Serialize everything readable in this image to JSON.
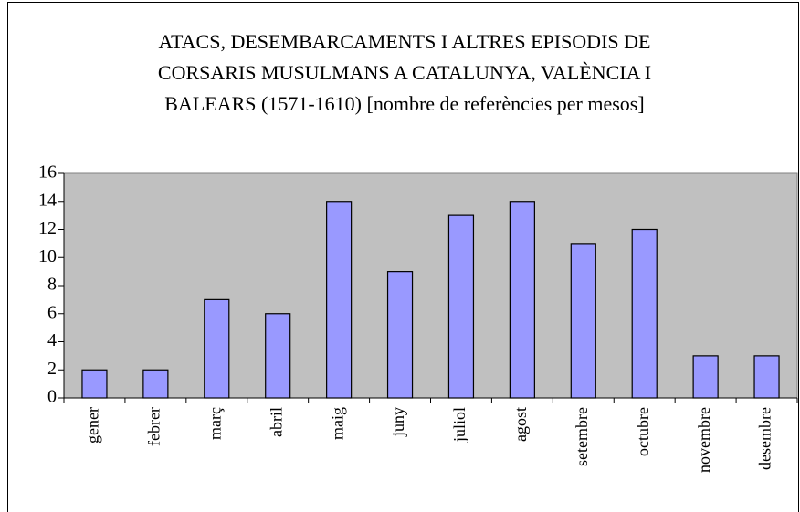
{
  "chart_data": {
    "type": "bar",
    "title": [
      "ATACS, DESEMBARCAMENTS I ALTRES EPISODIS DE",
      "CORSARIS MUSULMANS A CATALUNYA, VALÈNCIA I",
      "BALEARS (1571-1610) [nombre de referències per mesos]"
    ],
    "categories": [
      "gener",
      "febrer",
      "març",
      "abril",
      "maig",
      "juny",
      "juliol",
      "agost",
      "setembre",
      "octubre",
      "novembre",
      "desembre"
    ],
    "values": [
      2,
      2,
      7,
      6,
      14,
      9,
      13,
      14,
      11,
      12,
      3,
      3
    ],
    "color": "#9999ff",
    "ylim": [
      0,
      16
    ],
    "yticks": [
      0,
      2,
      4,
      6,
      8,
      10,
      12,
      14,
      16
    ],
    "grid": false
  }
}
